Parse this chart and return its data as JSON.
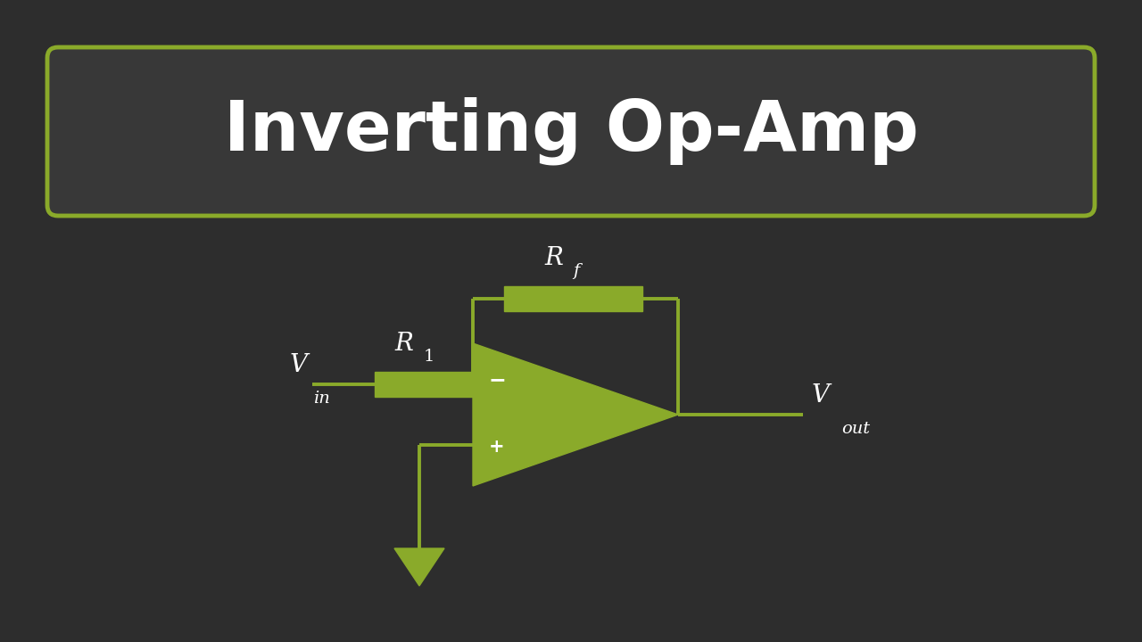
{
  "bg_color": "#2d2d2d",
  "green_color": "#8aaa2a",
  "white_color": "#ffffff",
  "title": "Inverting Op-Amp",
  "title_fontsize": 56,
  "title_box_color": "#383838",
  "title_border_color": "#8aaa2a",
  "circuit": {
    "vin_label": "V",
    "vin_sub": "in",
    "vout_label": "V",
    "vout_sub": "out",
    "r1_label": "R",
    "r1_sub": "1",
    "rf_label": "R",
    "rf_sub": "f",
    "minus_label": "−",
    "plus_label": "+"
  }
}
